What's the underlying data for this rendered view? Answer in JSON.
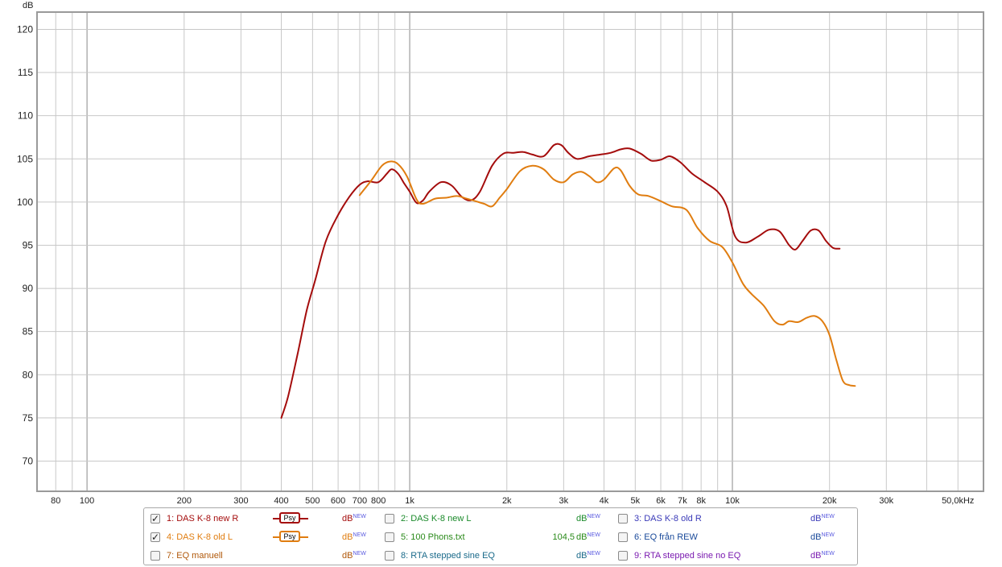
{
  "chart_data": {
    "type": "line",
    "x_scale": "log",
    "xlim": [
      70,
      60000
    ],
    "ylim": [
      66.5,
      122
    ],
    "y_unit_label": "dB",
    "grid": true,
    "y_ticks": [
      70,
      75,
      80,
      85,
      90,
      95,
      100,
      105,
      110,
      115,
      120
    ],
    "x_ticks": [
      {
        "v": 80,
        "label": "80"
      },
      {
        "v": 100,
        "label": "100"
      },
      {
        "v": 200,
        "label": "200"
      },
      {
        "v": 300,
        "label": "300"
      },
      {
        "v": 400,
        "label": "400"
      },
      {
        "v": 500,
        "label": "500"
      },
      {
        "v": 600,
        "label": "600"
      },
      {
        "v": 700,
        "label": "700"
      },
      {
        "v": 800,
        "label": "800"
      },
      {
        "v": 1000,
        "label": "1k"
      },
      {
        "v": 2000,
        "label": "2k"
      },
      {
        "v": 3000,
        "label": "3k"
      },
      {
        "v": 4000,
        "label": "4k"
      },
      {
        "v": 5000,
        "label": "5k"
      },
      {
        "v": 6000,
        "label": "6k"
      },
      {
        "v": 7000,
        "label": "7k"
      },
      {
        "v": 8000,
        "label": "8k"
      },
      {
        "v": 10000,
        "label": "10k"
      },
      {
        "v": 20000,
        "label": "20k"
      },
      {
        "v": 30000,
        "label": "30k"
      },
      {
        "v": 50000,
        "label": "50,0kHz"
      }
    ],
    "series": [
      {
        "name": "1: DAS K-8 new R",
        "color": "#a40c0c",
        "points": [
          [
            400,
            75.0
          ],
          [
            420,
            77.5
          ],
          [
            450,
            82.5
          ],
          [
            480,
            87.5
          ],
          [
            510,
            91.0
          ],
          [
            550,
            95.5
          ],
          [
            600,
            98.5
          ],
          [
            650,
            100.6
          ],
          [
            700,
            102.0
          ],
          [
            740,
            102.4
          ],
          [
            800,
            102.3
          ],
          [
            850,
            103.3
          ],
          [
            880,
            103.8
          ],
          [
            920,
            103.3
          ],
          [
            960,
            102.2
          ],
          [
            1000,
            101.2
          ],
          [
            1050,
            99.9
          ],
          [
            1100,
            100.2
          ],
          [
            1150,
            101.2
          ],
          [
            1250,
            102.3
          ],
          [
            1350,
            101.9
          ],
          [
            1450,
            100.6
          ],
          [
            1550,
            100.2
          ],
          [
            1650,
            101.2
          ],
          [
            1800,
            104.2
          ],
          [
            1950,
            105.6
          ],
          [
            2100,
            105.7
          ],
          [
            2250,
            105.8
          ],
          [
            2400,
            105.5
          ],
          [
            2600,
            105.3
          ],
          [
            2800,
            106.6
          ],
          [
            2950,
            106.6
          ],
          [
            3100,
            105.7
          ],
          [
            3300,
            105.0
          ],
          [
            3600,
            105.3
          ],
          [
            3900,
            105.5
          ],
          [
            4200,
            105.7
          ],
          [
            4500,
            106.1
          ],
          [
            4800,
            106.2
          ],
          [
            5200,
            105.6
          ],
          [
            5600,
            104.8
          ],
          [
            6000,
            104.9
          ],
          [
            6400,
            105.3
          ],
          [
            6900,
            104.6
          ],
          [
            7500,
            103.3
          ],
          [
            8200,
            102.3
          ],
          [
            9000,
            101.2
          ],
          [
            9600,
            99.5
          ],
          [
            10200,
            96.0
          ],
          [
            11000,
            95.3
          ],
          [
            12000,
            96.0
          ],
          [
            13000,
            96.8
          ],
          [
            14000,
            96.6
          ],
          [
            15000,
            95.0
          ],
          [
            15700,
            94.5
          ],
          [
            16500,
            95.5
          ],
          [
            17500,
            96.7
          ],
          [
            18500,
            96.7
          ],
          [
            19500,
            95.5
          ],
          [
            20500,
            94.7
          ],
          [
            21500,
            94.6
          ]
        ]
      },
      {
        "name": "4: DAS K-8 old L",
        "color": "#e07d10",
        "points": [
          [
            700,
            100.8
          ],
          [
            760,
            102.5
          ],
          [
            820,
            104.2
          ],
          [
            870,
            104.7
          ],
          [
            920,
            104.4
          ],
          [
            980,
            103.0
          ],
          [
            1050,
            100.3
          ],
          [
            1100,
            99.8
          ],
          [
            1200,
            100.4
          ],
          [
            1300,
            100.5
          ],
          [
            1400,
            100.7
          ],
          [
            1500,
            100.4
          ],
          [
            1600,
            100.1
          ],
          [
            1700,
            99.8
          ],
          [
            1800,
            99.5
          ],
          [
            1900,
            100.5
          ],
          [
            2000,
            101.5
          ],
          [
            2200,
            103.6
          ],
          [
            2400,
            104.2
          ],
          [
            2600,
            103.8
          ],
          [
            2800,
            102.6
          ],
          [
            3000,
            102.3
          ],
          [
            3200,
            103.2
          ],
          [
            3400,
            103.5
          ],
          [
            3600,
            103.0
          ],
          [
            3800,
            102.3
          ],
          [
            4000,
            102.6
          ],
          [
            4300,
            103.9
          ],
          [
            4500,
            103.7
          ],
          [
            4800,
            101.9
          ],
          [
            5100,
            100.9
          ],
          [
            5500,
            100.7
          ],
          [
            6000,
            100.1
          ],
          [
            6500,
            99.5
          ],
          [
            7200,
            99.1
          ],
          [
            7800,
            97.0
          ],
          [
            8500,
            95.5
          ],
          [
            9300,
            94.8
          ],
          [
            10000,
            93.0
          ],
          [
            10800,
            90.5
          ],
          [
            11500,
            89.3
          ],
          [
            12500,
            88.0
          ],
          [
            13500,
            86.2
          ],
          [
            14300,
            85.8
          ],
          [
            15000,
            86.2
          ],
          [
            16000,
            86.1
          ],
          [
            17000,
            86.6
          ],
          [
            18000,
            86.8
          ],
          [
            19000,
            86.2
          ],
          [
            20000,
            84.6
          ],
          [
            21000,
            81.7
          ],
          [
            22000,
            79.3
          ],
          [
            23000,
            78.8
          ],
          [
            24000,
            78.7
          ]
        ]
      }
    ]
  },
  "legend": [
    {
      "label": "1: DAS K-8 new R",
      "checked": true,
      "show_psy": true,
      "unit": "dB",
      "sup": "NEW",
      "value": "",
      "color": "#a40c0c"
    },
    {
      "label": "2: DAS K-8 new L",
      "checked": false,
      "show_psy": false,
      "unit": "dB",
      "sup": "NEW",
      "value": "",
      "color": "#1a8a2a"
    },
    {
      "label": "3: DAS K-8 old R",
      "checked": false,
      "show_psy": false,
      "unit": "dB",
      "sup": "NEW",
      "value": "",
      "color": "#3a3ab8"
    },
    {
      "label": "4: DAS K-8 old L",
      "checked": true,
      "show_psy": true,
      "unit": "dB",
      "sup": "NEW",
      "value": "",
      "color": "#e07d10"
    },
    {
      "label": "5: 100 Phons.txt",
      "checked": false,
      "show_psy": false,
      "unit": "dB",
      "sup": "NEW",
      "value": "104,5",
      "color": "#2a8a1a"
    },
    {
      "label": "6: EQ från REW",
      "checked": false,
      "show_psy": false,
      "unit": "dB",
      "sup": "NEW",
      "value": "",
      "color": "#1a4a9a"
    },
    {
      "label": "7: EQ manuell",
      "checked": false,
      "show_psy": false,
      "unit": "dB",
      "sup": "NEW",
      "value": "",
      "color": "#b0580a"
    },
    {
      "label": "8: RTA stepped sine EQ",
      "checked": false,
      "show_psy": false,
      "unit": "dB",
      "sup": "NEW",
      "value": "",
      "color": "#1a6a8a"
    },
    {
      "label": "9: RTA stepped sine no EQ",
      "checked": false,
      "show_psy": false,
      "unit": "dB",
      "sup": "NEW",
      "value": "",
      "color": "#7a1ab0"
    }
  ],
  "psy_label": "Psy"
}
